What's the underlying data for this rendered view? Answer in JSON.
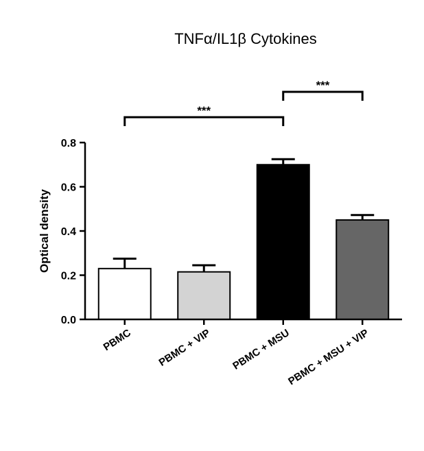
{
  "chart_data": {
    "type": "bar",
    "title": "TNFα/IL1β Cytokines",
    "xlabel": "",
    "ylabel": "Optical density",
    "ylim": [
      0,
      0.8
    ],
    "yticks": [
      "0.0",
      "0.2",
      "0.4",
      "0.6",
      "0.8"
    ],
    "ytick_values": [
      0,
      0.2,
      0.4,
      0.6,
      0.8
    ],
    "categories": [
      "PBMC",
      "PBMC + VIP",
      "PBMC + MSU",
      "PBMC + MSU + VIP"
    ],
    "values": [
      0.23,
      0.215,
      0.7,
      0.45
    ],
    "errors": [
      0.045,
      0.03,
      0.025,
      0.022
    ],
    "colors": [
      "#ffffff",
      "#d3d3d3",
      "#000000",
      "#666666"
    ],
    "significance": [
      {
        "from": 0,
        "to": 2,
        "label": "***"
      },
      {
        "from": 2,
        "to": 3,
        "label": "***"
      }
    ],
    "grid": false,
    "legend": "none"
  }
}
